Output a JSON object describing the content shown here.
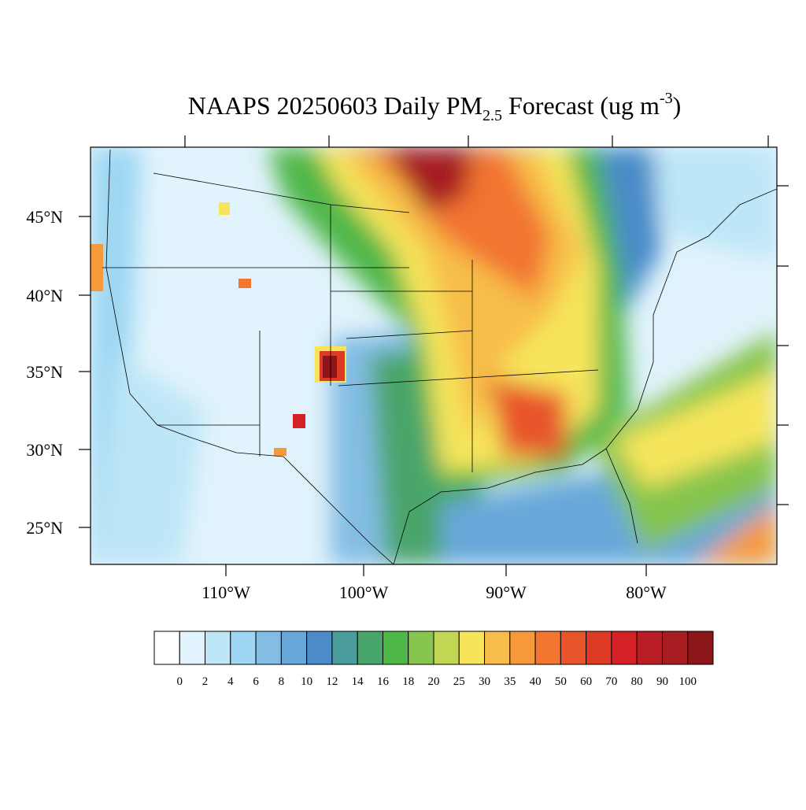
{
  "title": {
    "prefix": "NAAPS 20250603 Daily PM",
    "subscript": "2.5",
    "middle": " Forecast (ug m",
    "superscript": "-3",
    "suffix": ")"
  },
  "map": {
    "lat_labels": [
      "45°N",
      "40°N",
      "35°N",
      "30°N",
      "25°N"
    ],
    "lon_labels": [
      "110°W",
      "100°W",
      "90°W",
      "80°W"
    ]
  },
  "colorbar": {
    "colors": [
      "#ffffff",
      "#e1f3fc",
      "#bde6f7",
      "#9dd7f3",
      "#83bde4",
      "#68a7d9",
      "#4a8bc8",
      "#4b9c9c",
      "#48a56b",
      "#4fb748",
      "#86c54e",
      "#c3d654",
      "#f6e55b",
      "#f7bd4a",
      "#f6993b",
      "#f27530",
      "#e8552a",
      "#df3b24",
      "#d42127",
      "#b91e25",
      "#a61c21",
      "#8b1518"
    ],
    "labels": [
      "0",
      "2",
      "4",
      "6",
      "8",
      "10",
      "12",
      "14",
      "16",
      "18",
      "20",
      "25",
      "30",
      "35",
      "40",
      "50",
      "60",
      "70",
      "80",
      "90",
      "100"
    ]
  }
}
